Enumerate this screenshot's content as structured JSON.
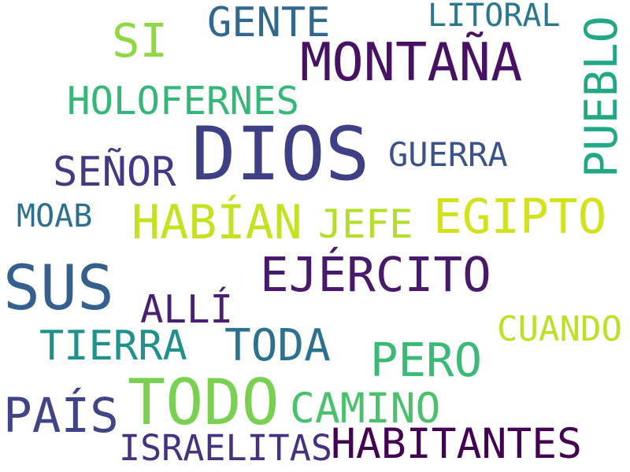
{
  "word_cloud": {
    "words": [
      {
        "text": "DIOS",
        "color": "#3f3f86"
      },
      {
        "text": "TODO",
        "color": "#7ad151"
      },
      {
        "text": "SUS",
        "color": "#355f8d"
      },
      {
        "text": "MONTAÑA",
        "color": "#471164"
      },
      {
        "text": "HABITANTES",
        "color": "#440154"
      },
      {
        "text": "EJÉRCITO",
        "color": "#481a6c"
      },
      {
        "text": "PUEBLO",
        "color": "#22a884"
      },
      {
        "text": "HOLOFERNES",
        "color": "#35b779"
      },
      {
        "text": "HABÍAN",
        "color": "#c7e020"
      },
      {
        "text": "EGIPTO",
        "color": "#d2e21b"
      },
      {
        "text": "GENTE",
        "color": "#31688e"
      },
      {
        "text": "SEÑOR",
        "color": "#443983"
      },
      {
        "text": "TODA",
        "color": "#2c728e"
      },
      {
        "text": "PERO",
        "color": "#3aba76"
      },
      {
        "text": "PAÍS",
        "color": "#414487"
      },
      {
        "text": "CAMINO",
        "color": "#4ac16d"
      },
      {
        "text": "SI",
        "color": "#8fd744"
      },
      {
        "text": "TIERRA",
        "color": "#21918c"
      },
      {
        "text": "ALLÍ",
        "color": "#482173"
      },
      {
        "text": "ISRAELITAS",
        "color": "#46327e"
      },
      {
        "text": "JEFE",
        "color": "#b5de2b"
      },
      {
        "text": "GUERRA",
        "color": "#3b528b"
      },
      {
        "text": "LITORAL",
        "color": "#2a788e"
      },
      {
        "text": "MOAB",
        "color": "#2d708e"
      },
      {
        "text": "CUANDO",
        "color": "#bddf26"
      }
    ]
  }
}
